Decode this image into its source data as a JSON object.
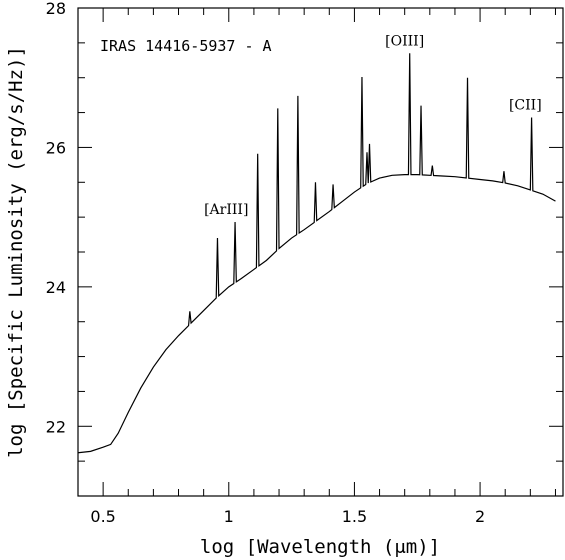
{
  "chart_data": {
    "type": "line",
    "title": "IRAS 14416-5937 - A",
    "xlabel": "log [Wavelength (μm)]",
    "ylabel": "log [Specific Luminosity (erg/s/Hz)]",
    "xlim": [
      0.4,
      2.33
    ],
    "ylim": [
      21.0,
      28.0
    ],
    "xticks": [
      0.5,
      1.0,
      1.5,
      2.0
    ],
    "xtick_labels": [
      "0.5",
      "1",
      "1.5",
      "2"
    ],
    "yticks": [
      22,
      24,
      26,
      28
    ],
    "ytick_labels": [
      "22",
      "24",
      "26",
      "28"
    ],
    "grid": false,
    "series": [
      {
        "continuum": [
          [
            0.4,
            21.62
          ],
          [
            0.45,
            21.64
          ],
          [
            0.5,
            21.7
          ],
          [
            0.53,
            21.74
          ],
          [
            0.56,
            21.9
          ],
          [
            0.6,
            22.2
          ],
          [
            0.65,
            22.55
          ],
          [
            0.7,
            22.85
          ],
          [
            0.75,
            23.1
          ],
          [
            0.8,
            23.3
          ],
          [
            0.85,
            23.48
          ],
          [
            0.9,
            23.66
          ],
          [
            0.95,
            23.84
          ],
          [
            1.0,
            24.0
          ],
          [
            1.05,
            24.12
          ],
          [
            1.1,
            24.25
          ],
          [
            1.15,
            24.38
          ],
          [
            1.2,
            24.55
          ],
          [
            1.25,
            24.7
          ],
          [
            1.3,
            24.82
          ],
          [
            1.35,
            24.95
          ],
          [
            1.4,
            25.08
          ],
          [
            1.45,
            25.22
          ],
          [
            1.5,
            25.36
          ],
          [
            1.55,
            25.48
          ],
          [
            1.6,
            25.56
          ],
          [
            1.65,
            25.6
          ],
          [
            1.7,
            25.61
          ],
          [
            1.75,
            25.61
          ],
          [
            1.8,
            25.6
          ],
          [
            1.85,
            25.59
          ],
          [
            1.9,
            25.58
          ],
          [
            1.95,
            25.56
          ],
          [
            2.0,
            25.54
          ],
          [
            2.05,
            25.52
          ],
          [
            2.1,
            25.49
          ],
          [
            2.15,
            25.45
          ],
          [
            2.2,
            25.39
          ],
          [
            2.25,
            25.33
          ],
          [
            2.3,
            25.23
          ]
        ],
        "lines": [
          [
            0.845,
            23.65
          ],
          [
            0.955,
            24.7
          ],
          [
            1.025,
            24.93
          ],
          [
            1.115,
            25.91
          ],
          [
            1.195,
            26.56
          ],
          [
            1.275,
            26.74
          ],
          [
            1.345,
            25.5
          ],
          [
            1.415,
            25.47
          ],
          [
            1.53,
            27.01
          ],
          [
            1.55,
            25.93
          ],
          [
            1.56,
            26.05
          ],
          [
            1.72,
            27.35
          ],
          [
            1.765,
            26.6
          ],
          [
            1.81,
            25.74
          ],
          [
            1.95,
            27.0
          ],
          [
            2.095,
            25.66
          ],
          [
            2.205,
            26.43
          ]
        ]
      }
    ],
    "annotations": [
      {
        "text": "[ArIII]",
        "x": 0.99,
        "y": 24.93
      },
      {
        "text": "[OIII]",
        "x": 1.7,
        "y": 27.35
      },
      {
        "text": "[CII]",
        "x": 2.18,
        "y": 26.43
      }
    ]
  }
}
